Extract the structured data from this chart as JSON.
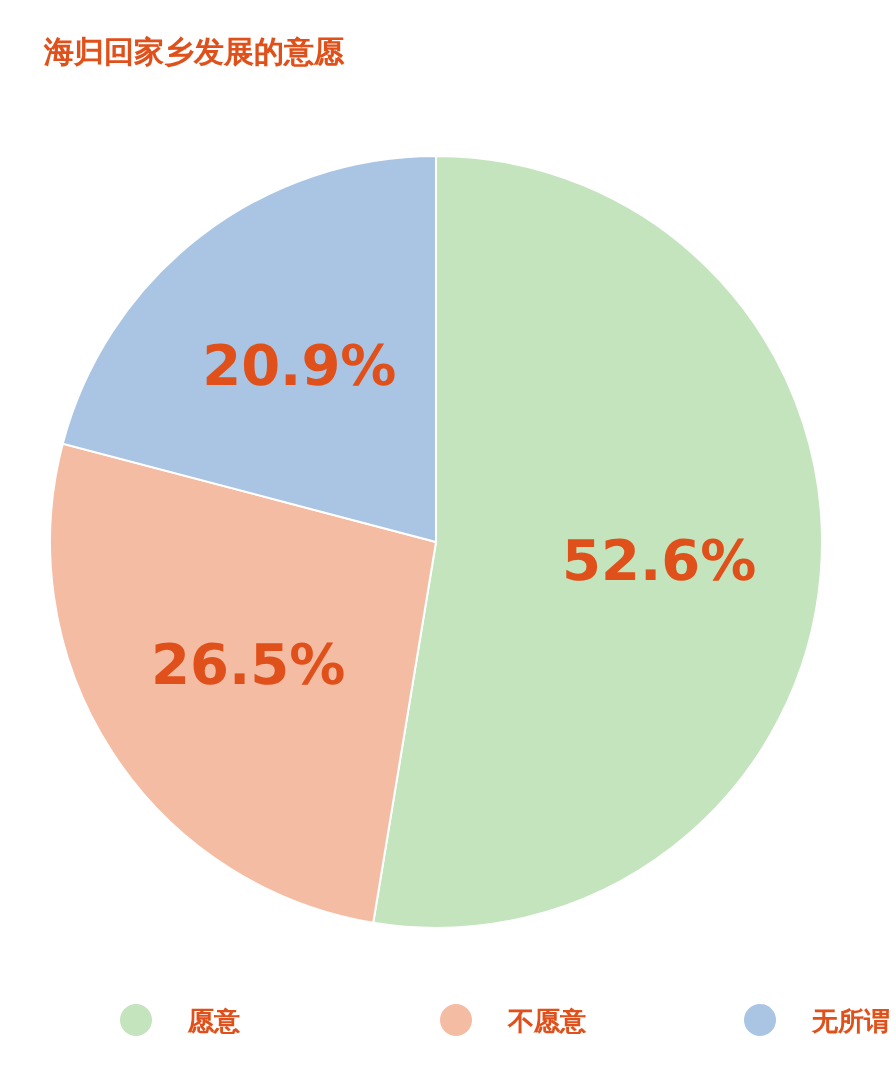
{
  "chart_data": {
    "type": "pie",
    "title": "海归回家乡发展的意愿",
    "categories": [
      "愿意",
      "不愿意",
      "无所谓"
    ],
    "values": [
      52.6,
      26.5,
      20.9
    ],
    "colors": [
      "#c3e4bd",
      "#f5bca4",
      "#a9c5e3"
    ],
    "value_labels": [
      "52.6%",
      "26.5%",
      "20.9%"
    ],
    "legend": "bottom"
  }
}
